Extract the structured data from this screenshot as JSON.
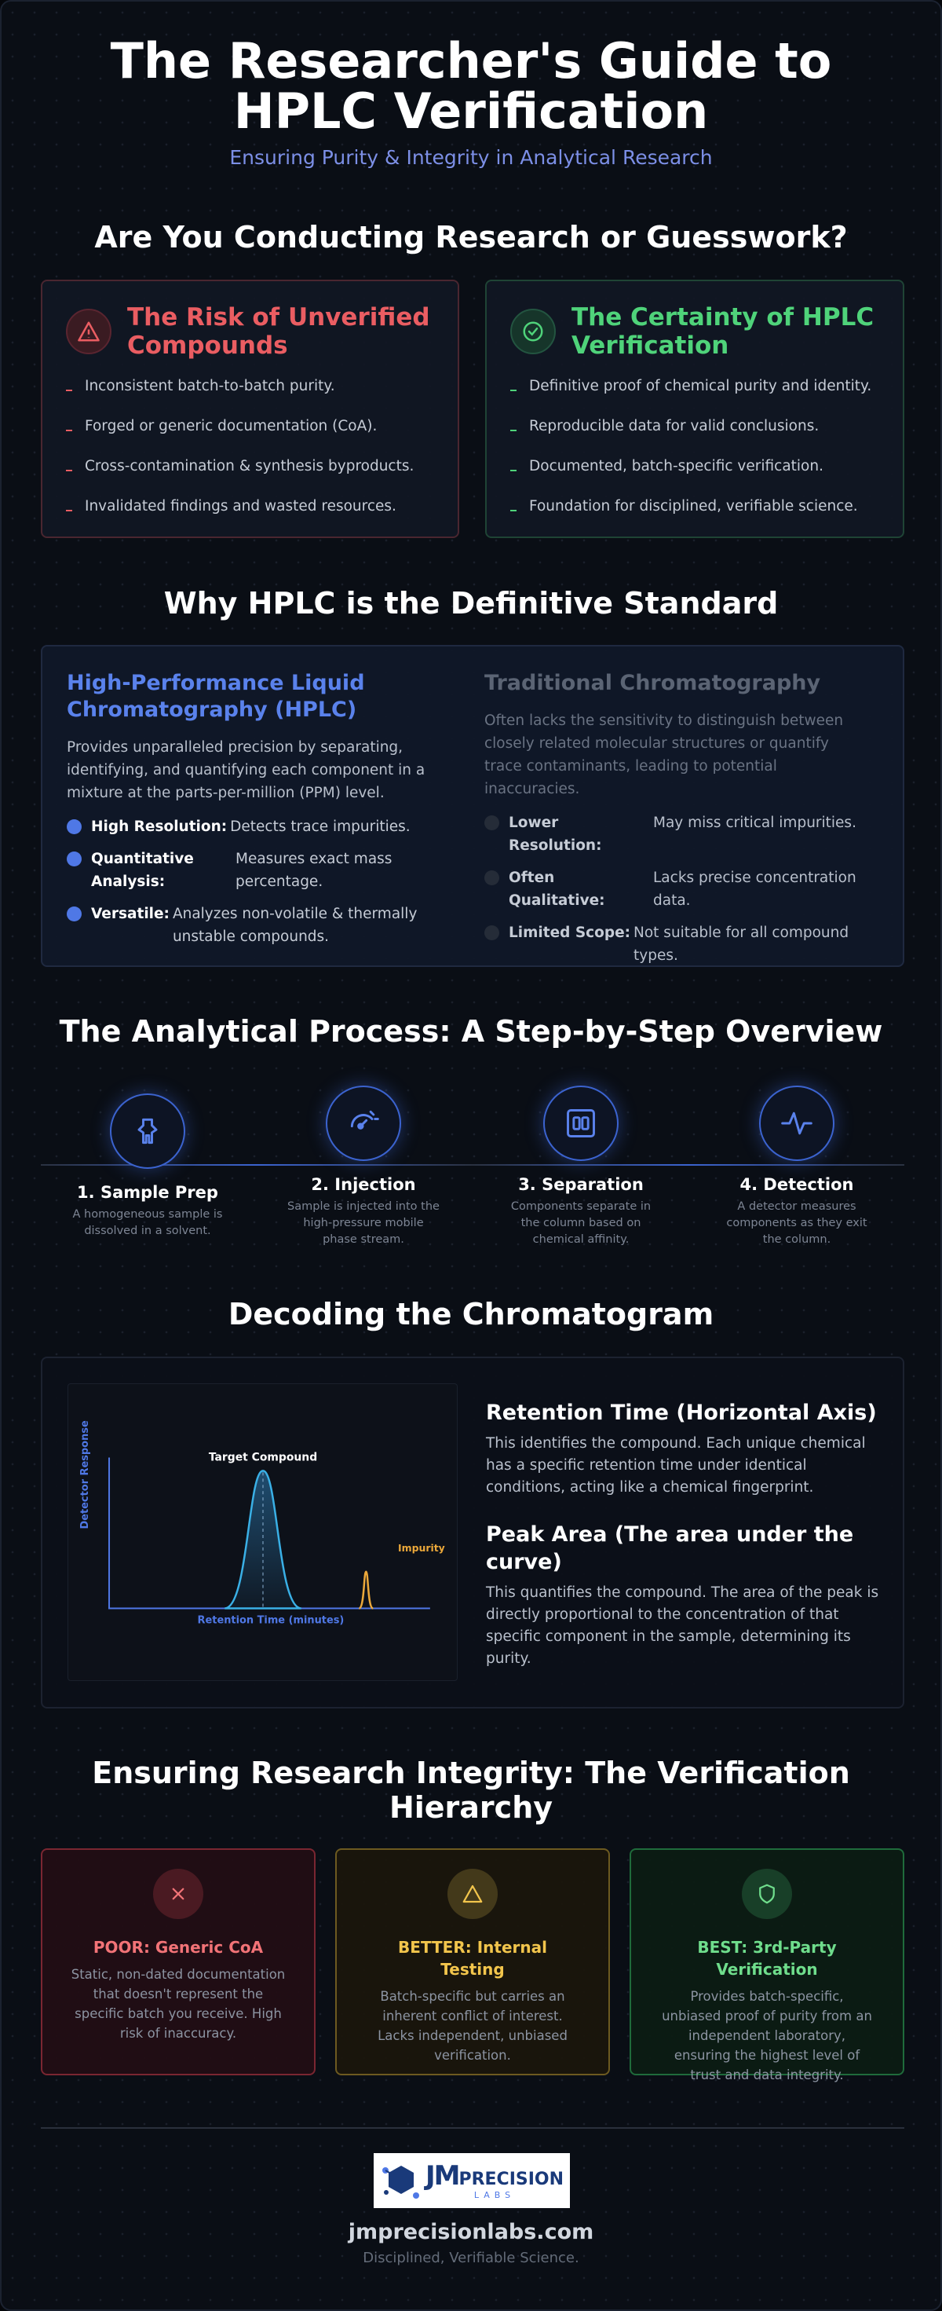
{
  "header": {
    "title_line1": "The Researcher's Guide to",
    "title_line2": "HPLC Verification",
    "subtitle": "Ensuring Purity & Integrity in Analytical Research"
  },
  "comparison": {
    "heading": "Are You Conducting Research or Guesswork?",
    "risk": {
      "title": "The Risk of Unverified Compounds",
      "items": [
        "Inconsistent batch-to-batch purity.",
        "Forged or generic documentation (CoA).",
        "Cross-contamination & synthesis byproducts.",
        "Invalidated findings and wasted resources."
      ]
    },
    "certainty": {
      "title": "The Certainty of HPLC Verification",
      "items": [
        "Definitive proof of chemical purity and identity.",
        "Reproducible data for valid conclusions.",
        "Documented, batch-specific verification.",
        "Foundation for disciplined, verifiable science."
      ]
    }
  },
  "standard": {
    "heading": "Why HPLC is the Definitive Standard",
    "hplc": {
      "title": "High-Performance Liquid Chromatography (HPLC)",
      "description": "Provides unparalleled precision by separating, identifying, and quantifying each component in a mixture at the parts-per-million (PPM) level.",
      "features": [
        {
          "label": "High Resolution:",
          "text": "Detects trace impurities."
        },
        {
          "label": "Quantitative Analysis:",
          "text": "Measures exact mass percentage."
        },
        {
          "label": "Versatile:",
          "text": "Analyzes non-volatile & thermally unstable compounds."
        }
      ]
    },
    "traditional": {
      "title": "Traditional Chromatography",
      "description": "Often lacks the sensitivity to distinguish between closely related molecular structures or quantify trace contaminants, leading to potential inaccuracies.",
      "features": [
        {
          "label": "Lower Resolution:",
          "text": "May miss critical impurities."
        },
        {
          "label": "Often Qualitative:",
          "text": "Lacks precise concentration data."
        },
        {
          "label": "Limited Scope:",
          "text": "Not suitable for all compound types."
        }
      ]
    }
  },
  "process": {
    "heading": "The Analytical Process: A Step-by-Step Overview",
    "steps": [
      {
        "title": "1. Sample Prep",
        "text": "A homogeneous sample is dissolved in a solvent."
      },
      {
        "title": "2. Injection",
        "text": "Sample is injected into the high-pressure mobile phase stream."
      },
      {
        "title": "3. Separation",
        "text": "Components separate in the column based on chemical affinity."
      },
      {
        "title": "4. Detection",
        "text": "A detector measures components as they exit the column."
      }
    ]
  },
  "chromatogram": {
    "heading": "Decoding the Chromatogram",
    "chart": {
      "y_label": "Detector Response",
      "x_label": "Retention Time (minutes)",
      "peak_label": "Target Compound",
      "impurity_label": "Impurity"
    },
    "sections": [
      {
        "title": "Retention Time (Horizontal Axis)",
        "text": "This identifies the compound. Each unique chemical has a specific retention time under identical conditions, acting like a chemical fingerprint."
      },
      {
        "title": "Peak Area (The area under the curve)",
        "text": "This quantifies the compound. The area of the peak is directly proportional to the concentration of that specific component in the sample, determining its purity."
      }
    ]
  },
  "hierarchy": {
    "heading": "Ensuring Research Integrity: The Verification Hierarchy",
    "tiers": [
      {
        "title": "POOR: Generic CoA",
        "text": "Static, non-dated documentation that doesn't represent the specific batch you receive. High risk of inaccuracy."
      },
      {
        "title": "BETTER: Internal Testing",
        "text": "Batch-specific but carries an inherent conflict of interest. Lacks independent, unbiased verification."
      },
      {
        "title": "BEST: 3rd-Party Verification",
        "text": "Provides batch-specific, unbiased proof of purity from an independent laboratory, ensuring the highest level of trust and data integrity."
      }
    ]
  },
  "footer": {
    "logo": {
      "mark": "JM",
      "name": "PRECISION",
      "sub": "LABS"
    },
    "url": "jmprecisionlabs.com",
    "tagline": "Disciplined, Verifiable Science."
  }
}
